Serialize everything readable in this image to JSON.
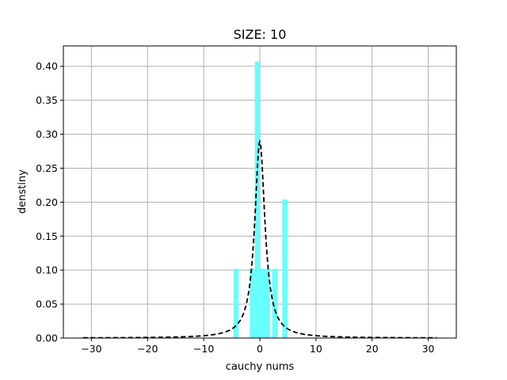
{
  "chart_data": {
    "type": "bar",
    "title": "SIZE: 10",
    "xlabel": "cauchy nums",
    "ylabel": "denstiny",
    "xlim": [
      -35,
      35
    ],
    "ylim": [
      0,
      0.43
    ],
    "xticks": [
      -30,
      -20,
      -10,
      0,
      10,
      20,
      30
    ],
    "xtick_labels": [
      "−30",
      "−20",
      "−10",
      "0",
      "10",
      "20",
      "30"
    ],
    "yticks": [
      0.0,
      0.05,
      0.1,
      0.15,
      0.2,
      0.25,
      0.3,
      0.35,
      0.4
    ],
    "ytick_labels": [
      "0.00",
      "0.05",
      "0.10",
      "0.15",
      "0.20",
      "0.25",
      "0.30",
      "0.35",
      "0.40"
    ],
    "grid": true,
    "bar_color": "#66ffff",
    "bins": [
      {
        "x0": -4.7,
        "x1": -3.8,
        "density": 0.102
      },
      {
        "x0": -1.8,
        "x1": -0.9,
        "density": 0.102
      },
      {
        "x0": -0.9,
        "x1": 0.0,
        "density": 0.407
      },
      {
        "x0": 0.0,
        "x1": 0.9,
        "density": 0.102
      },
      {
        "x0": 0.9,
        "x1": 1.8,
        "density": 0.102
      },
      {
        "x0": 2.2,
        "x1": 3.1,
        "density": 0.102
      },
      {
        "x0": 4.0,
        "x1": 4.9,
        "density": 0.204
      }
    ],
    "curve": {
      "type": "cauchy-pdf",
      "style": "dashed",
      "color": "#000000",
      "location": 0,
      "scale": 1.1,
      "x_range": [
        -31.5,
        31.5
      ]
    }
  }
}
